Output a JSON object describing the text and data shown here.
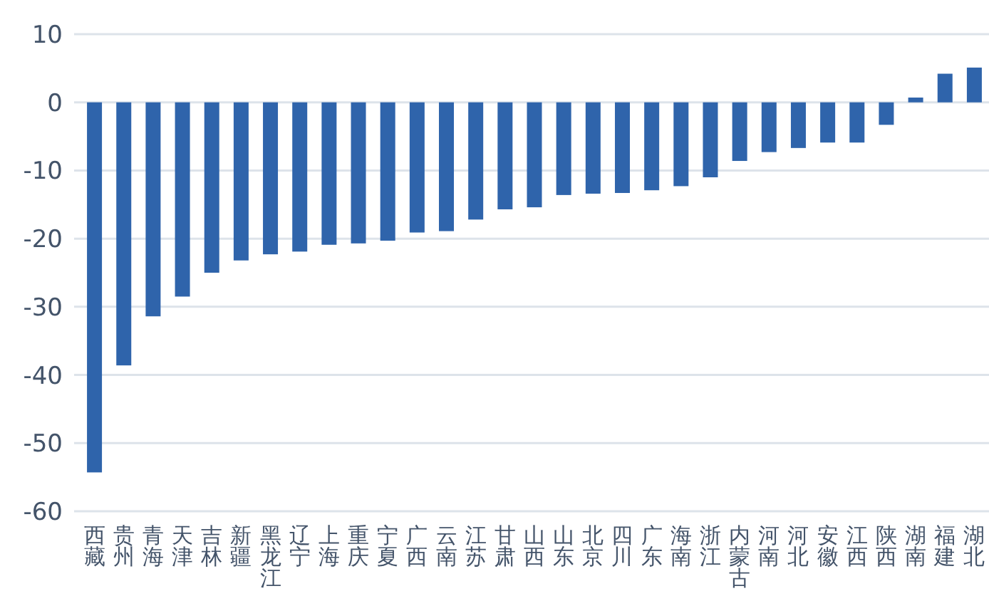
{
  "chart_data": {
    "type": "bar",
    "categories": [
      "西藏",
      "贵州",
      "青海",
      "天津",
      "吉林",
      "新疆",
      "黑龙江",
      "辽宁",
      "上海",
      "重庆",
      "宁夏",
      "广西",
      "云南",
      "江苏",
      "甘肃",
      "山西",
      "山东",
      "北京",
      "四川",
      "广东",
      "海南",
      "浙江",
      "内蒙古",
      "河南",
      "河北",
      "安徽",
      "江西",
      "陕西",
      "湖南",
      "福建",
      "湖北"
    ],
    "values": [
      -54.3,
      -38.6,
      -31.4,
      -28.5,
      -25.0,
      -23.2,
      -22.3,
      -21.9,
      -20.9,
      -20.7,
      -20.3,
      -19.1,
      -18.9,
      -17.2,
      -15.7,
      -15.4,
      -13.6,
      -13.4,
      -13.3,
      -12.9,
      -12.3,
      -11.0,
      -8.6,
      -7.3,
      -6.7,
      -5.9,
      -5.9,
      -3.3,
      0.7,
      4.2,
      5.1
    ],
    "color": "#2f64ab",
    "ylim": [
      -60,
      10
    ],
    "yticks": [
      -60,
      -50,
      -40,
      -30,
      -20,
      -10,
      0,
      10
    ],
    "grid": "y"
  }
}
